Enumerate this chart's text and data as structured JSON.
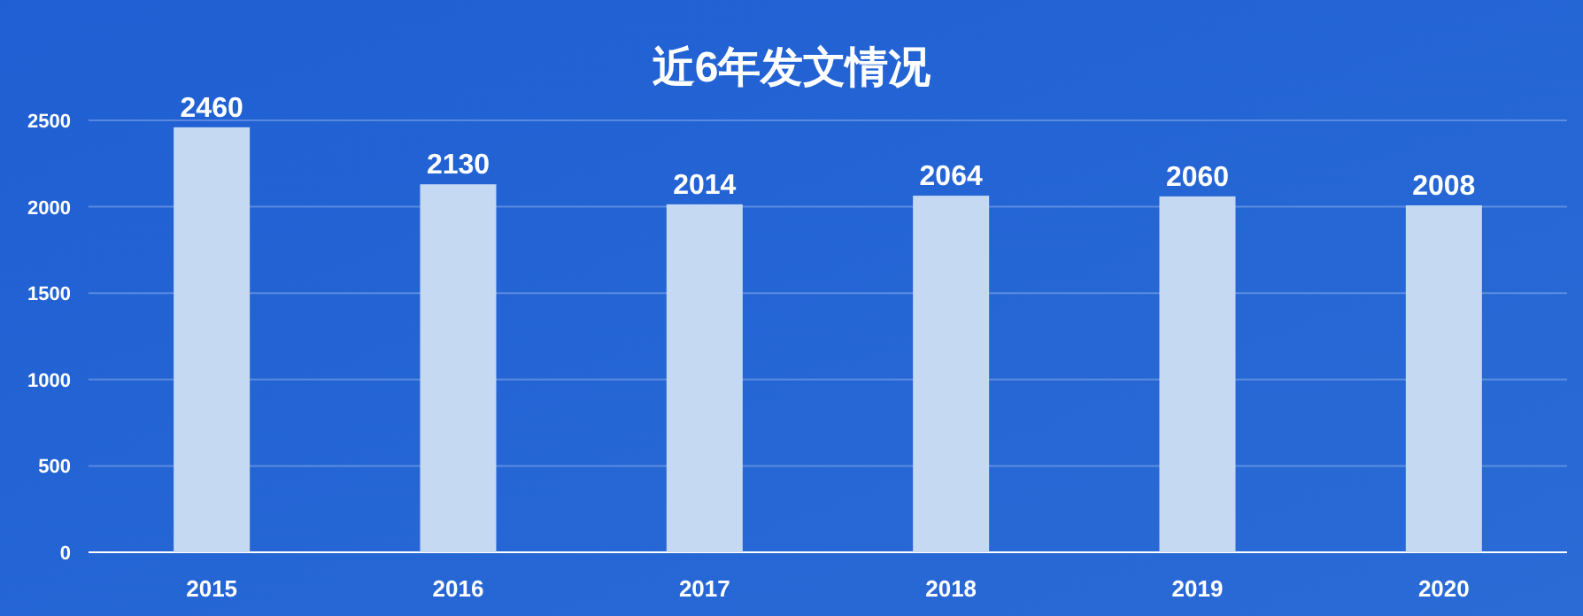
{
  "chart_data": {
    "type": "bar",
    "title": "近6年发文情况",
    "categories": [
      "2015",
      "2016",
      "2017",
      "2018",
      "2019",
      "2020"
    ],
    "values": [
      2460,
      2130,
      2014,
      2064,
      2060,
      2008
    ],
    "color": "#c5daf2",
    "ylim": [
      0,
      2500
    ],
    "yticks": [
      0,
      500,
      1000,
      1500,
      2000,
      2500
    ],
    "grid": "y",
    "data_labels": true
  }
}
